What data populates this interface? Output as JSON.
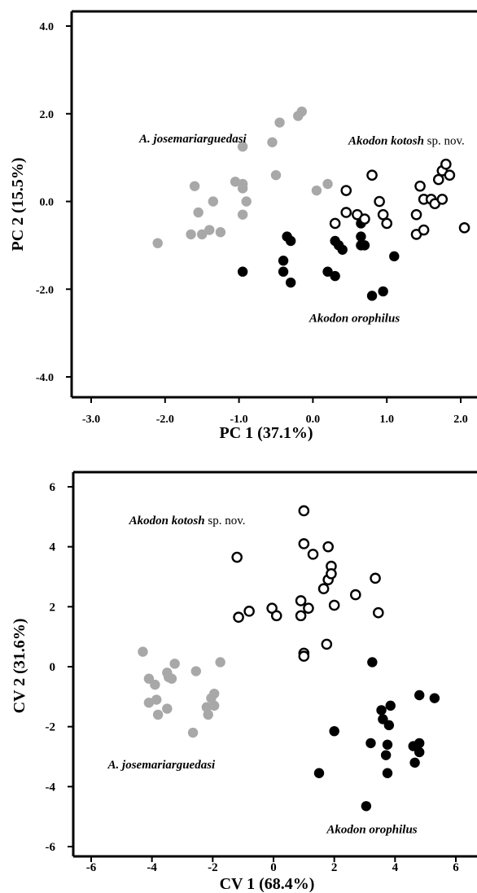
{
  "chart_data": [
    {
      "type": "scatter",
      "xlabel": "PC 1 (37.1%)",
      "ylabel": "PC 2 (15.5%)",
      "xlim": [
        -3.3,
        2.2
      ],
      "ylim": [
        -4.5,
        4.4
      ],
      "xticks": [
        -3.0,
        -2.0,
        -1.0,
        0.0,
        1.0,
        2.0
      ],
      "yticks": [
        -4.0,
        -2.0,
        0.0,
        2.0,
        4.0
      ],
      "xtick_labels": [
        "-3.0",
        "-2.0",
        "-1.0",
        "0.0",
        "1.0",
        "2.0"
      ],
      "ytick_labels": [
        "-4.0",
        "-2.0",
        "0.0",
        "2.0",
        "4.0"
      ],
      "grid": false,
      "annotations": [
        {
          "id": "jose",
          "text": "A. josemariarguedasi",
          "suffix": "",
          "x": -2.35,
          "y": 1.35
        },
        {
          "id": "kotosh",
          "text": "Akodon kotosh",
          "suffix": " sp. nov.",
          "x": 0.48,
          "y": 1.3
        },
        {
          "id": "orophilus",
          "text": "Akodon orophilus",
          "suffix": "",
          "x": -0.05,
          "y": -2.75
        }
      ],
      "series": [
        {
          "marker": "filled-gray",
          "color": "#a8a8a8",
          "points": [
            [
              -2.1,
              -0.95
            ],
            [
              -1.6,
              0.35
            ],
            [
              -1.55,
              -0.25
            ],
            [
              -1.65,
              -0.75
            ],
            [
              -1.5,
              -0.75
            ],
            [
              -1.4,
              -0.65
            ],
            [
              -1.35,
              0.0
            ],
            [
              -1.25,
              -0.7
            ],
            [
              -1.05,
              0.45
            ],
            [
              -0.95,
              0.4
            ],
            [
              -0.95,
              0.3
            ],
            [
              -0.95,
              1.25
            ],
            [
              -0.95,
              -0.3
            ],
            [
              -0.9,
              0.0
            ],
            [
              -0.55,
              1.35
            ],
            [
              -0.45,
              1.8
            ],
            [
              -0.5,
              0.6
            ],
            [
              -0.15,
              2.05
            ],
            [
              -0.2,
              1.95
            ],
            [
              0.05,
              0.25
            ],
            [
              0.2,
              0.4
            ]
          ]
        },
        {
          "marker": "filled-black",
          "color": "#000000",
          "points": [
            [
              -0.95,
              -1.6
            ],
            [
              -0.35,
              -0.8
            ],
            [
              -0.3,
              -0.9
            ],
            [
              -0.4,
              -1.35
            ],
            [
              -0.4,
              -1.6
            ],
            [
              -0.3,
              -1.85
            ],
            [
              0.2,
              -1.6
            ],
            [
              0.3,
              -1.7
            ],
            [
              0.3,
              -0.9
            ],
            [
              0.35,
              -1.0
            ],
            [
              0.4,
              -1.1
            ],
            [
              0.65,
              -0.5
            ],
            [
              0.65,
              -0.8
            ],
            [
              0.65,
              -1.0
            ],
            [
              0.7,
              -1.0
            ],
            [
              0.8,
              -2.15
            ],
            [
              0.95,
              -2.05
            ],
            [
              1.1,
              -1.25
            ]
          ]
        },
        {
          "marker": "open-circle",
          "color": "#000000",
          "points": [
            [
              0.3,
              -0.5
            ],
            [
              0.45,
              0.25
            ],
            [
              0.45,
              -0.25
            ],
            [
              0.6,
              -0.3
            ],
            [
              0.7,
              -0.4
            ],
            [
              0.8,
              0.6
            ],
            [
              0.9,
              0.0
            ],
            [
              0.95,
              -0.3
            ],
            [
              1.0,
              -0.5
            ],
            [
              1.4,
              -0.3
            ],
            [
              1.4,
              -0.75
            ],
            [
              1.45,
              0.35
            ],
            [
              1.5,
              0.05
            ],
            [
              1.5,
              -0.65
            ],
            [
              1.6,
              0.05
            ],
            [
              1.65,
              -0.05
            ],
            [
              1.7,
              0.5
            ],
            [
              1.75,
              0.05
            ],
            [
              1.75,
              0.7
            ],
            [
              1.8,
              0.85
            ],
            [
              1.85,
              0.6
            ],
            [
              2.05,
              -0.6
            ]
          ]
        }
      ]
    },
    {
      "type": "scatter",
      "xlabel": "CV 1 (68.4%)",
      "ylabel": "CV 2 (31.6%)",
      "xlim": [
        -7.1,
        7.0
      ],
      "ylim": [
        -6.6,
        6.3
      ],
      "xticks": [
        -6,
        -4,
        -2,
        0,
        2,
        4,
        6
      ],
      "yticks": [
        -6,
        -4,
        -2,
        0,
        2,
        4,
        6
      ],
      "xtick_labels": [
        "-6",
        "-4",
        "-2",
        "0",
        "2",
        "4",
        "6"
      ],
      "ytick_labels": [
        "-6",
        "-4",
        "-2",
        "0",
        "2",
        "4",
        "6"
      ],
      "grid": false,
      "annotations": [
        {
          "id": "kotosh",
          "text": "Akodon kotosh",
          "suffix": " sp. nov.",
          "x": -4.75,
          "y": 4.75
        },
        {
          "id": "jose",
          "text": "A. josemariarguedasi",
          "suffix": "",
          "x": -5.45,
          "y": -3.4
        },
        {
          "id": "orophilus",
          "text": "Akodon orophilus",
          "suffix": "",
          "x": 1.75,
          "y": -5.55
        }
      ],
      "series": [
        {
          "marker": "filled-gray",
          "color": "#a8a8a8",
          "points": [
            [
              -4.3,
              0.5
            ],
            [
              -4.1,
              -0.4
            ],
            [
              -4.1,
              -1.2
            ],
            [
              -3.9,
              -0.6
            ],
            [
              -3.85,
              -1.1
            ],
            [
              -3.8,
              -1.6
            ],
            [
              -3.5,
              -0.2
            ],
            [
              -3.5,
              -1.4
            ],
            [
              -3.45,
              -0.35
            ],
            [
              -3.35,
              -0.4
            ],
            [
              -3.25,
              0.1
            ],
            [
              -2.65,
              -2.2
            ],
            [
              -2.55,
              -0.15
            ],
            [
              -2.2,
              -1.35
            ],
            [
              -2.15,
              -1.6
            ],
            [
              -2.05,
              -1.05
            ],
            [
              -1.95,
              -0.9
            ],
            [
              -1.95,
              -1.3
            ],
            [
              -1.75,
              0.15
            ]
          ]
        },
        {
          "marker": "open-circle",
          "color": "#000000",
          "points": [
            [
              -1.2,
              3.65
            ],
            [
              -1.15,
              1.65
            ],
            [
              -0.8,
              1.85
            ],
            [
              -0.05,
              1.95
            ],
            [
              0.1,
              1.7
            ],
            [
              0.9,
              1.7
            ],
            [
              0.9,
              2.2
            ],
            [
              1.0,
              5.2
            ],
            [
              1.0,
              4.1
            ],
            [
              1.0,
              0.45
            ],
            [
              1.0,
              0.35
            ],
            [
              1.15,
              1.95
            ],
            [
              1.3,
              3.75
            ],
            [
              1.65,
              2.6
            ],
            [
              1.75,
              0.75
            ],
            [
              1.8,
              4.0
            ],
            [
              1.8,
              2.9
            ],
            [
              1.9,
              3.35
            ],
            [
              1.9,
              3.1
            ],
            [
              2.0,
              2.05
            ],
            [
              2.7,
              2.4
            ],
            [
              3.35,
              2.95
            ],
            [
              3.45,
              1.8
            ]
          ]
        },
        {
          "marker": "filled-black",
          "color": "#000000",
          "points": [
            [
              1.5,
              -3.55
            ],
            [
              2.0,
              -2.15
            ],
            [
              3.05,
              -4.65
            ],
            [
              3.2,
              -2.55
            ],
            [
              3.25,
              0.15
            ],
            [
              3.55,
              -1.45
            ],
            [
              3.6,
              -1.75
            ],
            [
              3.7,
              -2.95
            ],
            [
              3.75,
              -2.6
            ],
            [
              3.75,
              -3.55
            ],
            [
              3.8,
              -1.95
            ],
            [
              3.85,
              -1.3
            ],
            [
              4.6,
              -2.65
            ],
            [
              4.65,
              -3.2
            ],
            [
              4.8,
              -2.85
            ],
            [
              4.8,
              -2.55
            ],
            [
              4.8,
              -0.95
            ],
            [
              5.3,
              -1.05
            ]
          ]
        }
      ]
    }
  ]
}
